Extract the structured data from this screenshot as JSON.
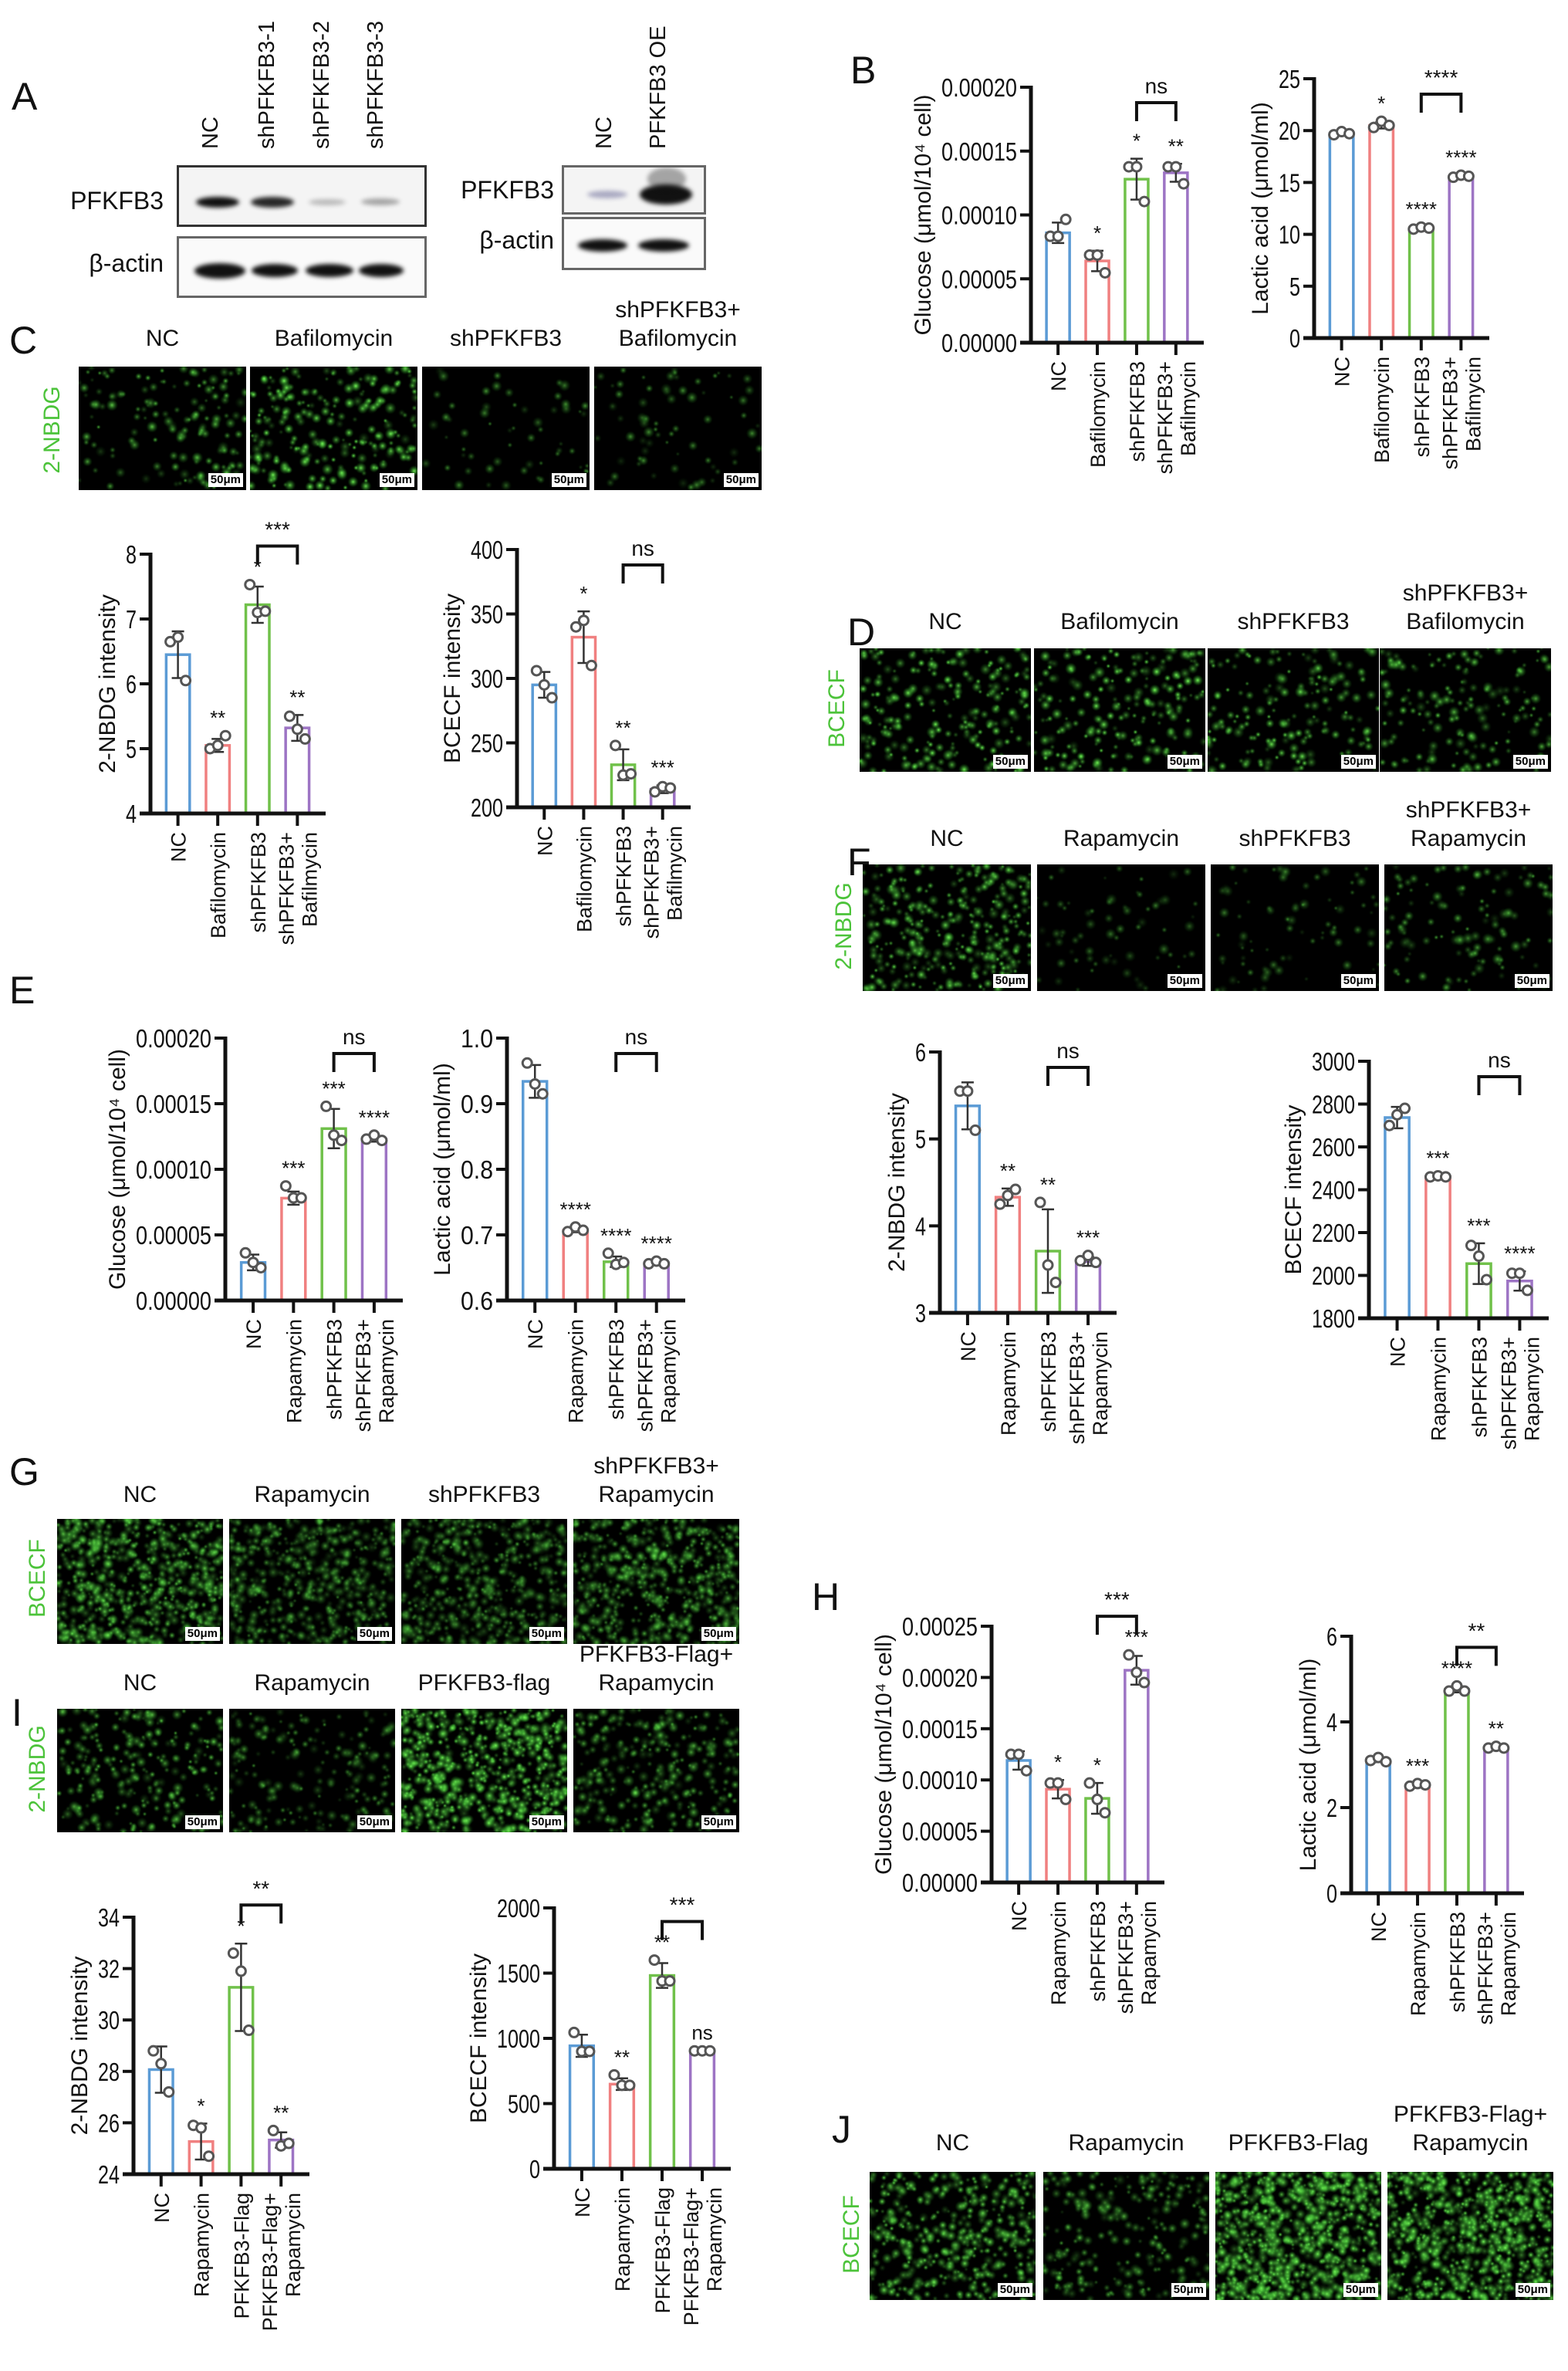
{
  "panel_letters": [
    "A",
    "B",
    "C",
    "D",
    "E",
    "F",
    "G",
    "H",
    "I",
    "J"
  ],
  "western_blot": {
    "left": {
      "lanes": [
        "NC",
        "shPFKFB3-1",
        "shPFKFB3-2",
        "shPFKFB3-3"
      ],
      "rows": [
        "PFKFB3",
        "β-actin"
      ]
    },
    "right": {
      "lanes": [
        "NC",
        "PFKFB3 OE"
      ],
      "rows": [
        "PFKFB3",
        "β-actin"
      ]
    }
  },
  "scale_bar": "50μm",
  "stain_color": "#4cc33a",
  "microscopy": [
    {
      "panel": "C",
      "stain": "2-NBDG",
      "labels": [
        [
          "NC"
        ],
        [
          "Bafilomycin"
        ],
        [
          "shPFKFB3"
        ],
        [
          "shPFKFB3+",
          "Bafilomycin"
        ]
      ]
    },
    {
      "panel": "D",
      "stain": "BCECF",
      "labels": [
        [
          "NC"
        ],
        [
          "Bafilomycin"
        ],
        [
          "shPFKFB3"
        ],
        [
          "shPFKFB3+",
          "Bafilomycin"
        ]
      ]
    },
    {
      "panel": "F",
      "stain": "2-NBDG",
      "labels": [
        [
          "NC"
        ],
        [
          "Rapamycin"
        ],
        [
          "shPFKFB3"
        ],
        [
          "shPFKFB3+",
          "Rapamycin"
        ]
      ]
    },
    {
      "panel": "G",
      "stain": "BCECF",
      "labels": [
        [
          "NC"
        ],
        [
          "Rapamycin"
        ],
        [
          "shPFKFB3"
        ],
        [
          "shPFKFB3+",
          "Rapamycin"
        ]
      ]
    },
    {
      "panel": "I",
      "stain": "2-NBDG",
      "labels": [
        [
          "NC"
        ],
        [
          "Rapamycin"
        ],
        [
          "PFKFB3-flag"
        ],
        [
          "PFKFB3-Flag+",
          "Rapamycin"
        ]
      ]
    },
    {
      "panel": "J",
      "stain": "BCECF",
      "labels": [
        [
          "NC"
        ],
        [
          "Rapamycin"
        ],
        [
          "PFKFB3-Flag"
        ],
        [
          "PFKFB3-Flag+",
          "Rapamycin"
        ]
      ]
    }
  ],
  "bar_colors": [
    "#5b9bd5",
    "#f08080",
    "#70c14a",
    "#9d74c4"
  ],
  "chart_data": [
    {
      "panel": "B",
      "type": "bar",
      "ylabel": "Glucose (μmol/10⁴ cell)",
      "ylim": [
        0,
        0.0002
      ],
      "yticks": [
        "0.00000",
        "0.00005",
        "0.00010",
        "0.00015",
        "0.00020"
      ],
      "categories": [
        [
          "NC"
        ],
        [
          "Bafilomycin"
        ],
        [
          "shPFKFB3"
        ],
        [
          "shPFKFB3+",
          "Bafilmycin"
        ]
      ],
      "values": [
        8.6e-05,
        6.4e-05,
        0.000128,
        0.000133
      ],
      "sd": [
        8e-06,
        8e-06,
        1.6e-05,
        7e-06
      ],
      "points": [
        [
          8.33e-05,
          8.33e-05,
          9.65e-05
        ],
        [
          6.86e-05,
          6.86e-05,
          5.47e-05
        ],
        [
          0.0001377,
          0.0001377,
          0.0001105
        ],
        [
          0.0001377,
          0.0001377,
          0.0001244
        ]
      ],
      "significance": [
        "",
        "*",
        "*",
        "**"
      ],
      "comparison": {
        "between": [
          "shPFKFB3",
          "shPFKFB3+ Bafilmycin"
        ],
        "label": "ns"
      }
    },
    {
      "panel": "B",
      "type": "bar",
      "ylabel": "Lactic acid (μmol/ml)",
      "ylim": [
        0,
        25
      ],
      "yticks": [
        "0",
        "5",
        "10",
        "15",
        "20",
        "25"
      ],
      "categories": [
        [
          "NC"
        ],
        [
          "Bafilomycin"
        ],
        [
          "shPFKFB3"
        ],
        [
          "shPFKFB3+",
          "Bafilmycin"
        ]
      ],
      "values": [
        19.7,
        20.5,
        10.6,
        15.6
      ],
      "sd": [
        0.15,
        0.3,
        0.1,
        0.1
      ],
      "points": [
        [
          19.6,
          19.9,
          19.7
        ],
        [
          20.3,
          20.9,
          20.5
        ],
        [
          10.5,
          10.7,
          10.6
        ],
        [
          15.5,
          15.7,
          15.6
        ]
      ],
      "significance": [
        "",
        "*",
        "****",
        "****"
      ],
      "comparison": {
        "between": [
          "shPFKFB3",
          "shPFKFB3+ Bafilmycin"
        ],
        "label": "****"
      }
    },
    {
      "panel": "C",
      "type": "bar",
      "ylabel": "2-NBDG intensity",
      "ylim": [
        4,
        8
      ],
      "yticks": [
        "4",
        "5",
        "6",
        "7",
        "8"
      ],
      "categories": [
        [
          "NC"
        ],
        [
          "Bafilomycin"
        ],
        [
          "shPFKFB3"
        ],
        [
          "shPFKFB3+",
          "Bafilmycin"
        ]
      ],
      "values": [
        6.45,
        5.05,
        7.22,
        5.32
      ],
      "sd": [
        0.36,
        0.1,
        0.28,
        0.2
      ],
      "points": [
        [
          6.65,
          6.72,
          6.05
        ],
        [
          5.0,
          5.05,
          5.2
        ],
        [
          7.53,
          7.1,
          7.12
        ],
        [
          5.5,
          5.3,
          5.15
        ]
      ],
      "significance": [
        "",
        "**",
        "*",
        "**"
      ],
      "comparison": {
        "between": [
          "shPFKFB3",
          "shPFKFB3+ Bafilmycin"
        ],
        "label": "***"
      }
    },
    {
      "panel": "C",
      "type": "bar",
      "ylabel": "BCECF intensity",
      "ylim": [
        200,
        400
      ],
      "yticks": [
        "200",
        "250",
        "300",
        "350",
        "400"
      ],
      "categories": [
        [
          "NC"
        ],
        [
          "Bafilomycin"
        ],
        [
          "shPFKFB3"
        ],
        [
          "shPFKFB3+",
          "Bafilmycin"
        ]
      ],
      "values": [
        295,
        332,
        233,
        214
      ],
      "sd": [
        10,
        20,
        12,
        3
      ],
      "points": [
        [
          306,
          295,
          285
        ],
        [
          340,
          345,
          310
        ],
        [
          248,
          225,
          226
        ],
        [
          212,
          216,
          215
        ]
      ],
      "significance": [
        "",
        "*",
        "**",
        "***"
      ],
      "comparison": {
        "between": [
          "shPFKFB3",
          "shPFKFB3+ Bafilmycin"
        ],
        "label": "ns"
      }
    },
    {
      "panel": "E",
      "type": "bar",
      "ylabel": "Glucose (μmol/10⁴ cell)",
      "ylim": [
        0,
        0.0002
      ],
      "yticks": [
        "0.00000",
        "0.00005",
        "0.00010",
        "0.00015",
        "0.00020"
      ],
      "categories": [
        [
          "NC"
        ],
        [
          "Rapamycin"
        ],
        [
          "shPFKFB3"
        ],
        [
          "shPFKFB3+",
          "Rapamycin"
        ]
      ],
      "values": [
        2.9e-05,
        7.8e-05,
        0.000131,
        0.000123
      ],
      "sd": [
        6e-06,
        5e-06,
        1.5e-05,
        2e-06
      ],
      "points": [
        [
          3.63e-05,
          2.9e-05,
          2.5e-05
        ],
        [
          8.73e-05,
          7.82e-05,
          7.82e-05
        ],
        [
          0.000148,
          0.000126,
          0.000122
        ],
        [
          0.000123,
          0.000126,
          0.000122
        ]
      ],
      "significance": [
        "",
        "***",
        "***",
        "****"
      ],
      "comparison": {
        "between": [
          "shPFKFB3",
          "shPFKFB3+ Rapamycin"
        ],
        "label": "ns"
      }
    },
    {
      "panel": "E",
      "type": "bar",
      "ylabel": "Lactic acid (μmol/ml)",
      "ylim": [
        0.6,
        1.0
      ],
      "yticks": [
        "0.6",
        "0.7",
        "0.8",
        "0.9",
        "1.0"
      ],
      "categories": [
        [
          "NC"
        ],
        [
          "Rapamycin"
        ],
        [
          "shPFKFB3"
        ],
        [
          "shPFKFB3+",
          "Rapamycin"
        ]
      ],
      "values": [
        0.934,
        0.707,
        0.659,
        0.657
      ],
      "sd": [
        0.025,
        0.003,
        0.008,
        0.002
      ],
      "points": [
        [
          0.962,
          0.93,
          0.915
        ],
        [
          0.705,
          0.712,
          0.707
        ],
        [
          0.672,
          0.655,
          0.658
        ],
        [
          0.656,
          0.66,
          0.656
        ]
      ],
      "significance": [
        "",
        "****",
        "****",
        "****"
      ],
      "comparison": {
        "between": [
          "shPFKFB3",
          "shPFKFB3+ Rapamycin"
        ],
        "label": "ns"
      }
    },
    {
      "panel": "F",
      "type": "bar",
      "ylabel": "2-NBDG intensity",
      "ylim": [
        3,
        6
      ],
      "yticks": [
        "3",
        "4",
        "5",
        "6"
      ],
      "categories": [
        [
          "NC"
        ],
        [
          "Rapamycin"
        ],
        [
          "shPFKFB3"
        ],
        [
          "shPFKFB3+",
          "Rapamycin"
        ]
      ],
      "values": [
        5.38,
        4.33,
        3.71,
        3.59
      ],
      "sd": [
        0.27,
        0.1,
        0.48,
        0.05
      ],
      "points": [
        [
          5.55,
          5.55,
          5.1
        ],
        [
          4.25,
          4.35,
          4.42
        ],
        [
          4.27,
          3.55,
          3.35
        ],
        [
          3.6,
          3.66,
          3.58
        ]
      ],
      "significance": [
        "",
        "**",
        "**",
        "***"
      ],
      "comparison": {
        "between": [
          "shPFKFB3",
          "shPFKFB3+ Rapamycin"
        ],
        "label": "ns"
      }
    },
    {
      "panel": "F",
      "type": "bar",
      "ylabel": "BCECF intensity",
      "ylim": [
        1800,
        3000
      ],
      "yticks": [
        "1800",
        "2000",
        "2200",
        "2400",
        "2600",
        "2800",
        "3000"
      ],
      "categories": [
        [
          "NC"
        ],
        [
          "Rapamycin"
        ],
        [
          "shPFKFB3"
        ],
        [
          "shPFKFB3+",
          "Rapamycin"
        ]
      ],
      "values": [
        2737,
        2460,
        2055,
        1974
      ],
      "sd": [
        50,
        3,
        95,
        45
      ],
      "points": [
        [
          2700,
          2750,
          2780
        ],
        [
          2460,
          2465,
          2460
        ],
        [
          2140,
          2090,
          1980
        ],
        [
          2010,
          2010,
          1930
        ]
      ],
      "significance": [
        "",
        "***",
        "***",
        "****"
      ],
      "comparison": {
        "between": [
          "shPFKFB3",
          "shPFKFB3+ Rapamycin"
        ],
        "label": "ns"
      }
    },
    {
      "panel": "H",
      "type": "bar",
      "ylabel": "Glucose (μmol/10⁴ cell)",
      "ylim": [
        0,
        0.00025
      ],
      "yticks": [
        "0.00000",
        "0.00005",
        "0.00010",
        "0.00015",
        "0.00020",
        "0.00025"
      ],
      "categories": [
        [
          "NC"
        ],
        [
          "Rapamycin"
        ],
        [
          "shPFKFB3"
        ],
        [
          "shPFKFB3+",
          "Rapamycin"
        ]
      ],
      "values": [
        0.000119,
        9.1e-05,
        8.2e-05,
        0.000207
      ],
      "sd": [
        9e-06,
        9e-06,
        1.5e-05,
        1.4e-05
      ],
      "points": [
        [
          0.000125,
          0.000125,
          0.000109
        ],
        [
          9.7e-05,
          9.7e-05,
          8.1e-05
        ],
        [
          9.7e-05,
          8.1e-05,
          6.8e-05
        ],
        [
          0.000222,
          0.000205,
          0.000195
        ]
      ],
      "significance": [
        "",
        "*",
        "*",
        "***"
      ],
      "comparison": {
        "between": [
          "shPFKFB3",
          "shPFKFB3+ Rapamycin"
        ],
        "label": "***"
      }
    },
    {
      "panel": "H",
      "type": "bar",
      "ylabel": "Lactic acid (μmol/ml)",
      "ylim": [
        0,
        6
      ],
      "yticks": [
        "0",
        "2",
        "4",
        "6"
      ],
      "categories": [
        [
          "NC"
        ],
        [
          "Rapamycin"
        ],
        [
          "shPFKFB3"
        ],
        [
          "shPFKFB3+",
          "Rapamycin"
        ]
      ],
      "values": [
        3.11,
        2.53,
        4.76,
        3.4
      ],
      "sd": [
        0.05,
        0.03,
        0.07,
        0.02
      ],
      "points": [
        [
          3.1,
          3.17,
          3.07
        ],
        [
          2.5,
          2.56,
          2.53
        ],
        [
          4.72,
          4.84,
          4.72
        ],
        [
          3.39,
          3.43,
          3.39
        ]
      ],
      "significance": [
        "",
        "***",
        "****",
        "**"
      ],
      "comparison": {
        "between": [
          "shPFKFB3",
          "shPFKFB3+ Rapamycin"
        ],
        "label": "**"
      }
    },
    {
      "panel": "I",
      "type": "bar",
      "ylabel": "2-NBDG intensity",
      "ylim": [
        24,
        34
      ],
      "yticks": [
        "24",
        "26",
        "28",
        "30",
        "32",
        "34"
      ],
      "categories": [
        [
          "NC"
        ],
        [
          "Rapamycin"
        ],
        [
          "PFKFB3-Flag"
        ],
        [
          "PFKFB3-Flag+",
          "Rapamycin"
        ]
      ],
      "values": [
        28.07,
        25.27,
        31.27,
        25.33
      ],
      "sd": [
        0.9,
        0.7,
        1.7,
        0.3
      ],
      "points": [
        [
          28.8,
          28.3,
          27.2
        ],
        [
          25.9,
          25.8,
          24.7
        ],
        [
          32.6,
          31.9,
          29.6
        ],
        [
          25.7,
          25.1,
          25.2
        ]
      ],
      "significance": [
        "",
        "*",
        "*",
        "**"
      ],
      "comparison": {
        "between": [
          "PFKFB3-Flag",
          "PFKFB3-Flag+ Rapamycin"
        ],
        "label": "**"
      }
    },
    {
      "panel": "I",
      "type": "bar",
      "ylabel": "BCECF intensity",
      "ylim": [
        0,
        2000
      ],
      "yticks": [
        "0",
        "500",
        "1000",
        "1500",
        "2000"
      ],
      "categories": [
        [
          "NC"
        ],
        [
          "Rapamycin"
        ],
        [
          "PFKFB3-Flag"
        ],
        [
          "PFKFB3-Flag+",
          "Rapamycin"
        ]
      ],
      "values": [
        943,
        649,
        1482,
        904
      ],
      "sd": [
        85,
        45,
        95,
        5
      ],
      "points": [
        [
          1045,
          900,
          900
        ],
        [
          720,
          640,
          640
        ],
        [
          1600,
          1440,
          1440
        ],
        [
          904,
          904,
          904
        ]
      ],
      "significance": [
        "",
        "**",
        "**",
        "ns"
      ],
      "comparison": {
        "between": [
          "PFKFB3-Flag",
          "PFKFB3-Flag+ Rapamycin"
        ],
        "label": "***"
      }
    }
  ]
}
